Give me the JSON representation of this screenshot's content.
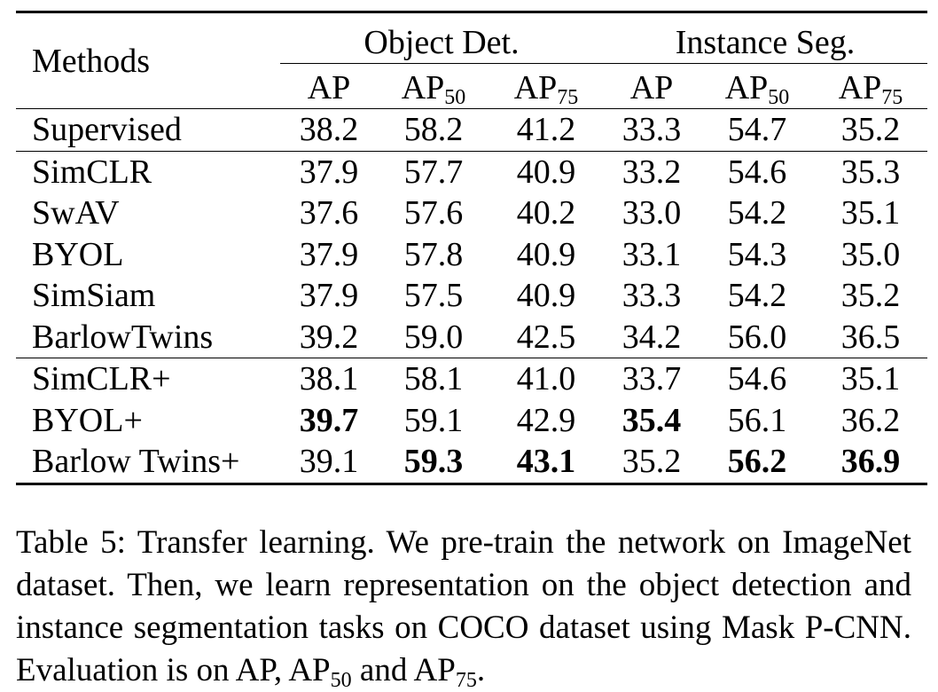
{
  "table": {
    "methods_header": "Methods",
    "groups": [
      "Object Det.",
      "Instance Seg."
    ],
    "subheaders": [
      {
        "base": "AP",
        "sub": ""
      },
      {
        "base": "AP",
        "sub": "50"
      },
      {
        "base": "AP",
        "sub": "75"
      },
      {
        "base": "AP",
        "sub": ""
      },
      {
        "base": "AP",
        "sub": "50"
      },
      {
        "base": "AP",
        "sub": "75"
      }
    ],
    "rows": [
      {
        "method": "Supervised",
        "values": [
          "38.2",
          "58.2",
          "41.2",
          "33.3",
          "54.7",
          "35.2"
        ],
        "bold": [
          false,
          false,
          false,
          false,
          false,
          false
        ]
      },
      {
        "method": "SimCLR",
        "values": [
          "37.9",
          "57.7",
          "40.9",
          "33.2",
          "54.6",
          "35.3"
        ],
        "bold": [
          false,
          false,
          false,
          false,
          false,
          false
        ]
      },
      {
        "method": "SwAV",
        "values": [
          "37.6",
          "57.6",
          "40.2",
          "33.0",
          "54.2",
          "35.1"
        ],
        "bold": [
          false,
          false,
          false,
          false,
          false,
          false
        ]
      },
      {
        "method": "BYOL",
        "values": [
          "37.9",
          "57.8",
          "40.9",
          "33.1",
          "54.3",
          "35.0"
        ],
        "bold": [
          false,
          false,
          false,
          false,
          false,
          false
        ]
      },
      {
        "method": "SimSiam",
        "values": [
          "37.9",
          "57.5",
          "40.9",
          "33.3",
          "54.2",
          "35.2"
        ],
        "bold": [
          false,
          false,
          false,
          false,
          false,
          false
        ]
      },
      {
        "method": "BarlowTwins",
        "values": [
          "39.2",
          "59.0",
          "42.5",
          "34.2",
          "56.0",
          "36.5"
        ],
        "bold": [
          false,
          false,
          false,
          false,
          false,
          false
        ]
      },
      {
        "method": "SimCLR+",
        "values": [
          "38.1",
          "58.1",
          "41.0",
          "33.7",
          "54.6",
          "35.1"
        ],
        "bold": [
          false,
          false,
          false,
          false,
          false,
          false
        ]
      },
      {
        "method": "BYOL+",
        "values": [
          "39.7",
          "59.1",
          "42.9",
          "35.4",
          "56.1",
          "36.2"
        ],
        "bold": [
          true,
          false,
          false,
          true,
          false,
          false
        ]
      },
      {
        "method": "Barlow Twins+",
        "values": [
          "39.1",
          "59.3",
          "43.1",
          "35.2",
          "56.2",
          "36.9"
        ],
        "bold": [
          false,
          true,
          true,
          false,
          true,
          true
        ]
      }
    ]
  },
  "caption": {
    "text_before_sub1": "Table 5: Transfer learning. We pre-train the network on Im­ageNet dataset. Then, we learn representation on the object detection and instance segmentation tasks on COCO dataset using Mask P-CNN. Evaluation is on AP, AP",
    "sub1": "50",
    "text_between": " and AP",
    "sub2": "75",
    "text_after": "."
  }
}
